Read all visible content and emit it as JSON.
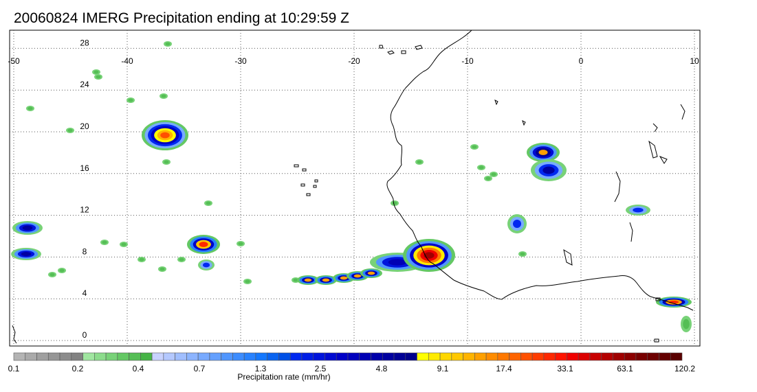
{
  "title": "20060824 IMERG Precipitation ending at 10:29:59 Z",
  "map": {
    "lon_range": [
      -50,
      10
    ],
    "lat_range": [
      -1,
      31
    ],
    "lon_ticks": [
      "-50",
      "-40",
      "-30",
      "-20",
      "-10",
      "0",
      "10"
    ],
    "lat_ticks": [
      "28",
      "24",
      "20",
      "16",
      "12",
      "8",
      "4",
      "0"
    ],
    "gridlines": "dotted",
    "coastline": "black"
  },
  "colorbar": {
    "label": "Precipitation rate (mm/hr)",
    "tick_labels": [
      "0.1",
      "0.2",
      "0.4",
      "0.7",
      "1.3",
      "2.5",
      "4.8",
      "9.1",
      "17.4",
      "33.1",
      "63.1",
      "120.2"
    ],
    "colors": [
      "#b4b4b4",
      "#aaaaaa",
      "#a0a0a0",
      "#969696",
      "#8c8c8c",
      "#828282",
      "#a0e6a0",
      "#8cdc8c",
      "#78d278",
      "#64c864",
      "#55be55",
      "#46b446",
      "#c8d2ff",
      "#b4c8ff",
      "#a0beff",
      "#8cb4ff",
      "#78aaff",
      "#64a0ff",
      "#5096ff",
      "#3c8cff",
      "#2882ff",
      "#1478ff",
      "#0a64f0",
      "#0050e6",
      "#0028f0",
      "#001ee6",
      "#0014dc",
      "#000ad2",
      "#0000c8",
      "#0000be",
      "#0000b4",
      "#0000aa",
      "#0000a0",
      "#000096",
      "#00008c",
      "#ffff00",
      "#ffeb00",
      "#ffd700",
      "#ffc800",
      "#ffb400",
      "#ffa000",
      "#ff8c00",
      "#ff7800",
      "#ff6400",
      "#ff5000",
      "#ff3c00",
      "#ff2800",
      "#ff1400",
      "#f00000",
      "#dc0000",
      "#c80000",
      "#b40000",
      "#a00000",
      "#8c0000",
      "#780000",
      "#6e0000",
      "#640000",
      "#5a0000"
    ]
  }
}
